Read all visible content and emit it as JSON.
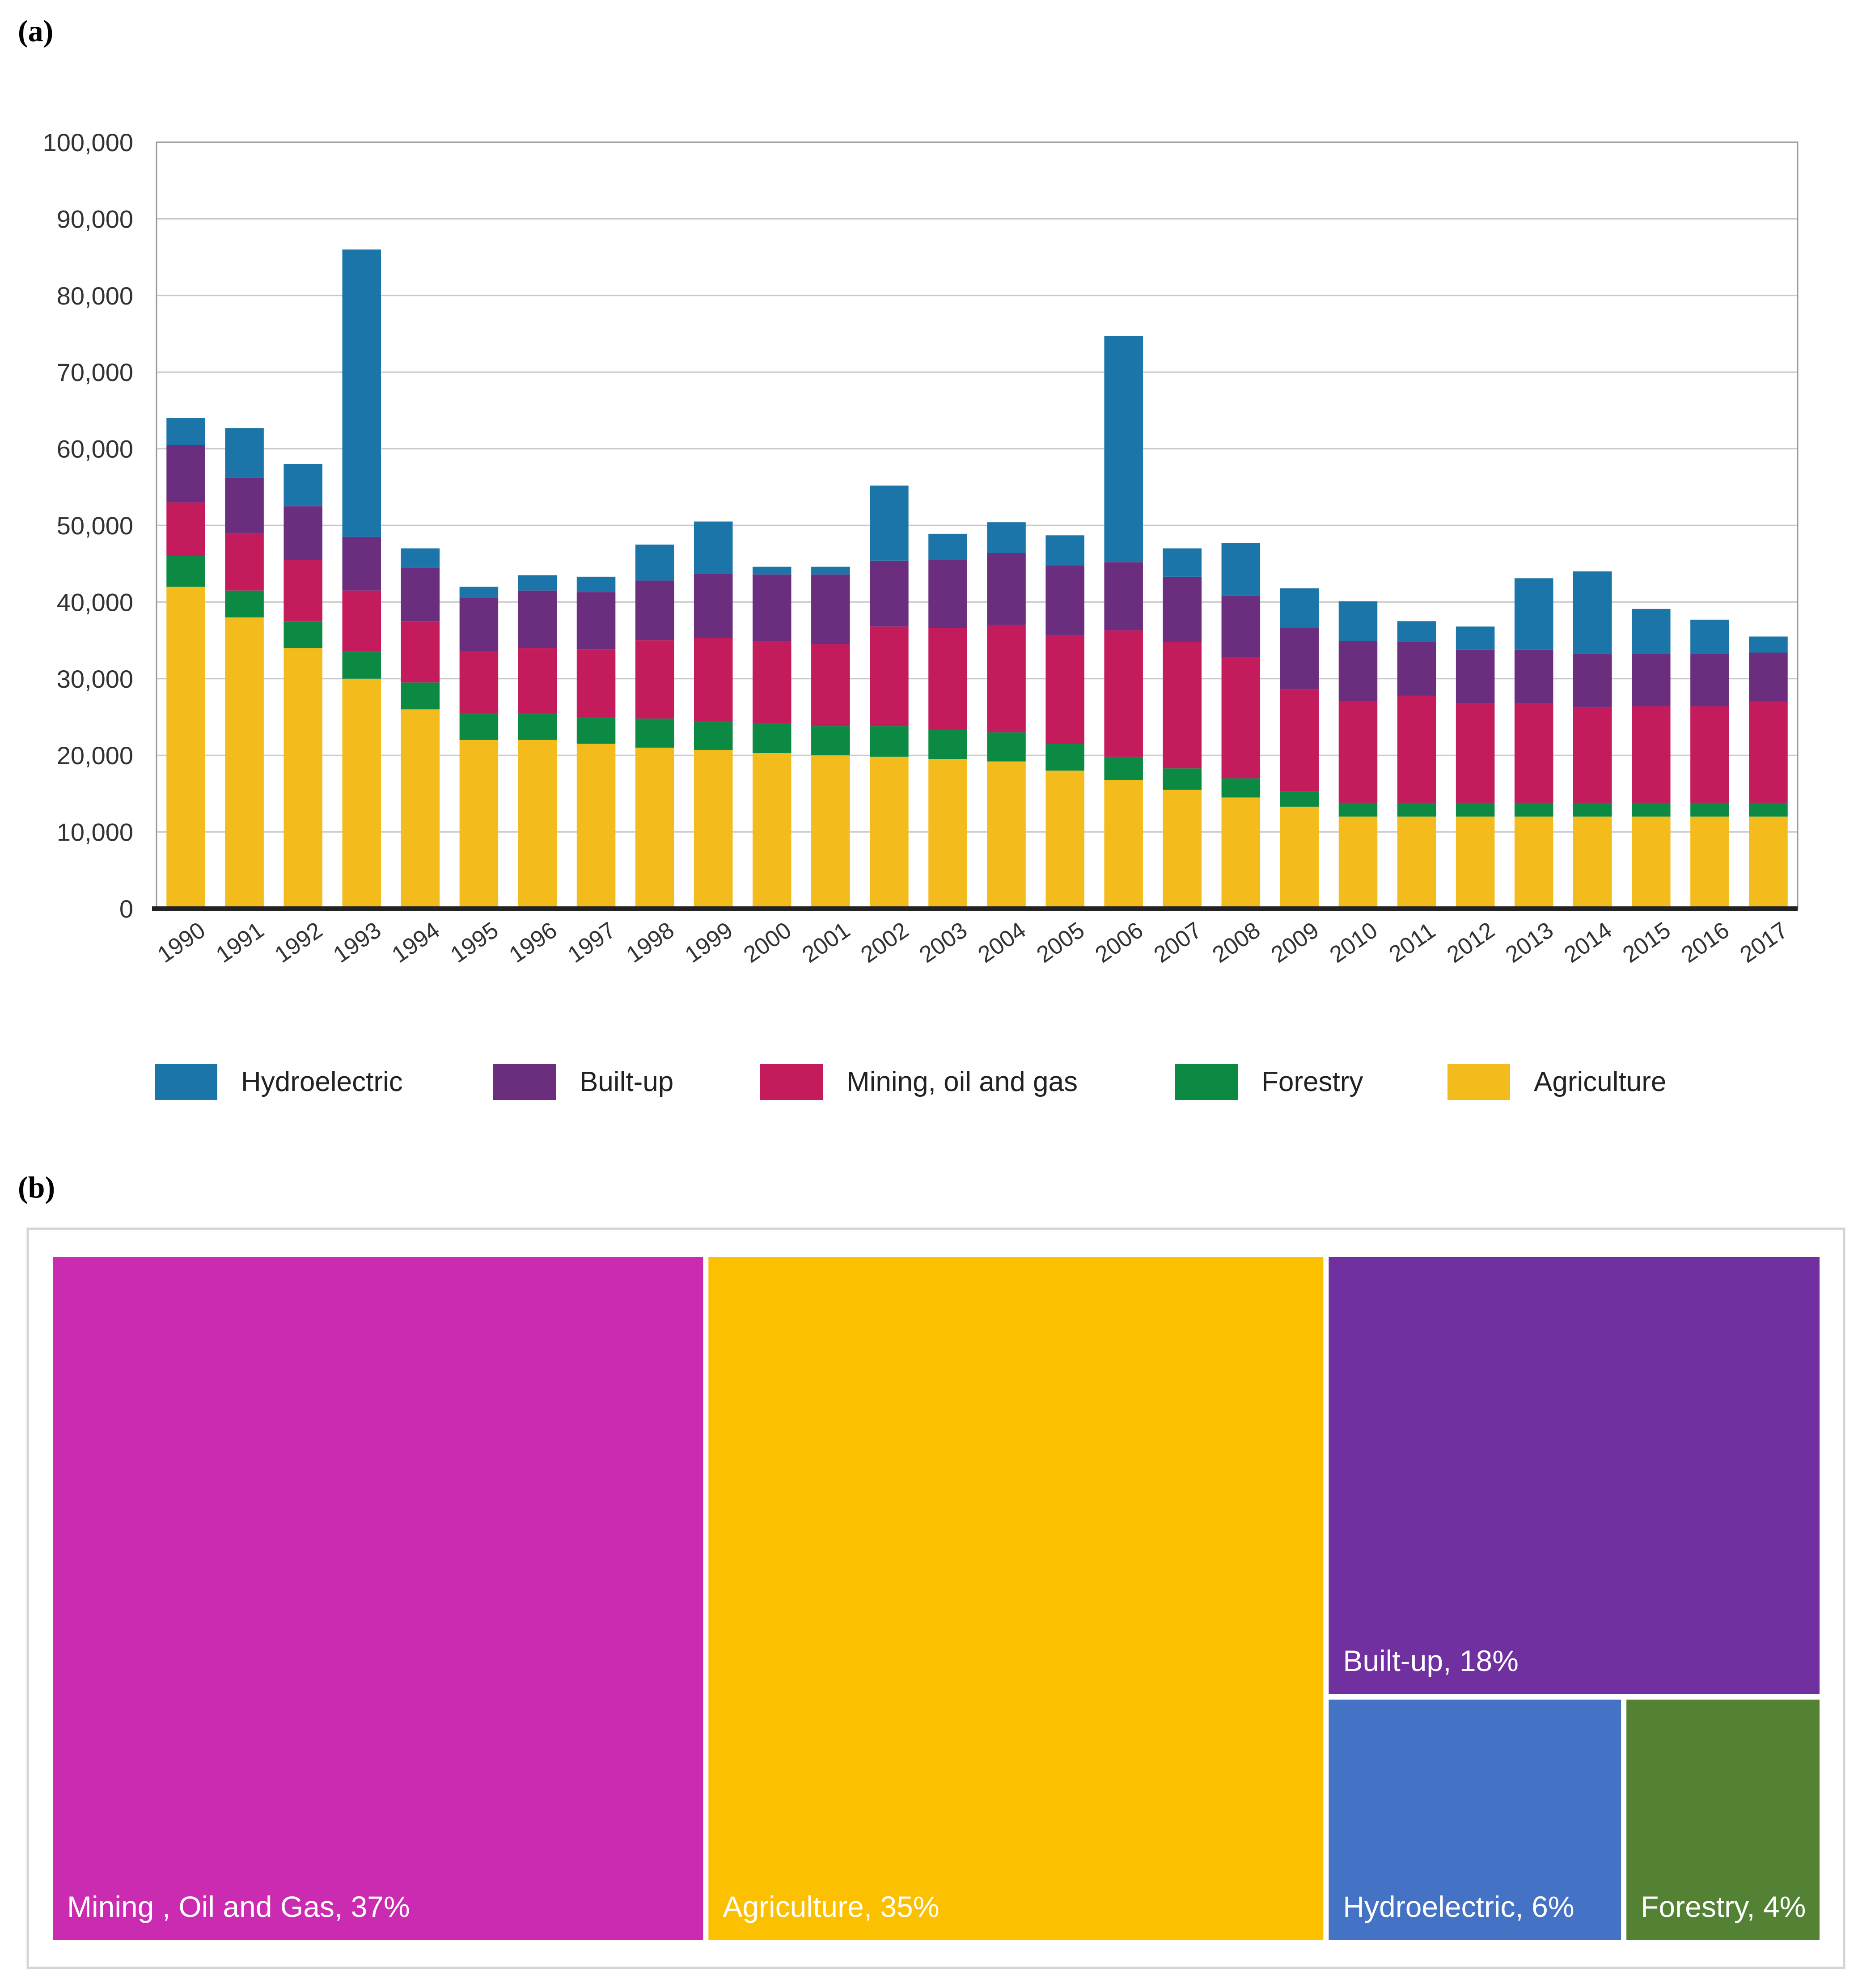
{
  "panels": {
    "a_label": "(a)",
    "b_label": "(b)"
  },
  "colors": {
    "Hydroelectric": "#1b75a8",
    "Built-up": "#6b2d7d",
    "Mining, oil and gas": "#c41b5c",
    "Forestry": "#0c8a44",
    "Agriculture": "#f4bb1c"
  },
  "chart_data": [
    {
      "type": "bar",
      "stacked": true,
      "title": "",
      "xlabel": "",
      "ylabel": "",
      "ylim": [
        0,
        100000
      ],
      "yticks": [
        "0",
        "10,000",
        "20,000",
        "30,000",
        "40,000",
        "50,000",
        "60,000",
        "70,000",
        "80,000",
        "90,000",
        "100,000"
      ],
      "grid": true,
      "legend_position": "bottom",
      "categories": [
        "1990",
        "1991",
        "1992",
        "1993",
        "1994",
        "1995",
        "1996",
        "1997",
        "1998",
        "1999",
        "2000",
        "2001",
        "2002",
        "2003",
        "2004",
        "2005",
        "2006",
        "2007",
        "2008",
        "2009",
        "2010",
        "2011",
        "2012",
        "2013",
        "2014",
        "2015",
        "2016",
        "2017"
      ],
      "series": [
        {
          "name": "Agriculture",
          "values": [
            42000,
            38000,
            34000,
            30000,
            26000,
            22000,
            22000,
            21500,
            21000,
            20700,
            20300,
            20000,
            19800,
            19500,
            19200,
            18000,
            16800,
            15500,
            14500,
            13300,
            12000,
            12000,
            12000,
            12000,
            12000,
            12000,
            12000,
            12000
          ]
        },
        {
          "name": "Forestry",
          "values": [
            4000,
            3500,
            3500,
            3500,
            3500,
            3500,
            3500,
            3500,
            3800,
            3800,
            3800,
            3800,
            4000,
            3800,
            3800,
            3500,
            3000,
            2800,
            2500,
            2000,
            1800,
            1800,
            1800,
            1800,
            1800,
            1800,
            1800,
            1800
          ]
        },
        {
          "name": "Mining, oil and gas",
          "values": [
            7000,
            7500,
            8000,
            8000,
            8000,
            8000,
            8500,
            8800,
            10200,
            10800,
            10800,
            10700,
            13000,
            13300,
            14000,
            14200,
            16500,
            16500,
            15800,
            13300,
            13300,
            14000,
            13000,
            13000,
            12500,
            12600,
            12600,
            13200
          ]
        },
        {
          "name": "Built-up",
          "values": [
            7500,
            7200,
            7000,
            7000,
            7000,
            7000,
            7500,
            7500,
            7800,
            8400,
            8700,
            9100,
            8600,
            8900,
            9400,
            9100,
            8900,
            8500,
            8000,
            8000,
            7800,
            7000,
            7000,
            7000,
            7000,
            6800,
            6800,
            6400
          ]
        },
        {
          "name": "Hydroelectric",
          "values": [
            3500,
            6500,
            5500,
            37500,
            2500,
            1500,
            2000,
            2000,
            4700,
            6800,
            1000,
            1000,
            9800,
            3400,
            4000,
            3900,
            29500,
            3700,
            6900,
            5200,
            5200,
            2700,
            3000,
            9300,
            10700,
            5900,
            4500,
            2100
          ]
        }
      ]
    },
    {
      "type": "treemap",
      "items": [
        {
          "name": "Mining , Oil and Gas",
          "percent": 37,
          "label": "Mining , Oil and Gas, 37%",
          "color": "#cb2bb0"
        },
        {
          "name": "Agriculture",
          "percent": 35,
          "label": "Agriculture, 35%",
          "color": "#fbc000"
        },
        {
          "name": "Built-up",
          "percent": 18,
          "label": "Built-up, 18%",
          "color": "#7030a0"
        },
        {
          "name": "Hydroelectric",
          "percent": 6,
          "label": "Hydroelectric, 6%",
          "color": "#4472c4"
        },
        {
          "name": "Forestry",
          "percent": 4,
          "label": "Forestry, 4%",
          "color": "#548235"
        }
      ]
    }
  ]
}
